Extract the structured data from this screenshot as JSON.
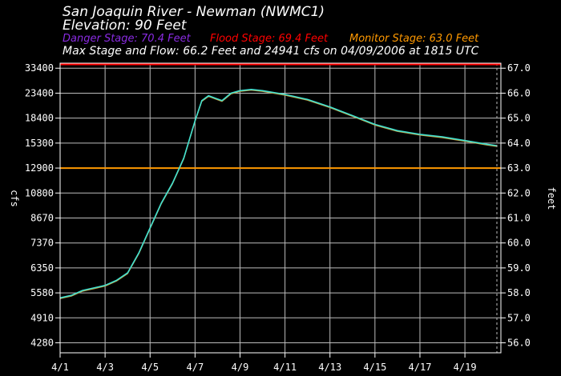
{
  "chart_data": {
    "type": "line",
    "title": "San Joaquin River - Newman (NWMC1)",
    "subtitle": "Elevation: 90 Feet",
    "stages": [
      {
        "label": "Danger Stage: 70.4 Feet",
        "value": 70.4,
        "color": "#8a2be2"
      },
      {
        "label": "Flood Stage: 69.4 Feet",
        "value": 69.4,
        "color": "#ff0000"
      },
      {
        "label": "Monitor Stage: 63.0 Feet",
        "value": 63.0,
        "color": "#ff9900"
      }
    ],
    "summary": "Max Stage and Flow: 66.2 Feet and 24941 cfs on 04/09/2006 at 1815 UTC",
    "ylabel_left": "cfs",
    "ylabel_right": "feet",
    "y_right_range": [
      55.6,
      67.2
    ],
    "x_range": [
      0,
      19.6
    ],
    "x_ticks": [
      "4/1",
      "4/3",
      "4/5",
      "4/7",
      "4/9",
      "4/11",
      "4/13",
      "4/15",
      "4/17",
      "4/19"
    ],
    "x_tick_positions": [
      0,
      2,
      4,
      6,
      8,
      10,
      12,
      14,
      16,
      18
    ],
    "right_ticks": [
      56.0,
      57.0,
      58.0,
      59.0,
      60.0,
      61.0,
      62.0,
      63.0,
      64.0,
      65.0,
      66.0,
      67.0
    ],
    "right_tick_labels": [
      "56.0",
      "57.0",
      "58.0",
      "59.0",
      "60.0",
      "61.0",
      "62.0",
      "63.0",
      "64.0",
      "65.0",
      "66.0",
      "67.0"
    ],
    "left_ticks": [
      {
        "label": "4280",
        "stage": 56.0
      },
      {
        "label": "4910",
        "stage": 57.0
      },
      {
        "label": "5580",
        "stage": 58.0
      },
      {
        "label": "6350",
        "stage": 59.0
      },
      {
        "label": "7370",
        "stage": 60.0
      },
      {
        "label": "8670",
        "stage": 61.0
      },
      {
        "label": "10800",
        "stage": 62.0
      },
      {
        "label": "12900",
        "stage": 63.0
      },
      {
        "label": "15300",
        "stage": 64.0
      },
      {
        "label": "18400",
        "stage": 65.0
      },
      {
        "label": "23400",
        "stage": 66.0
      },
      {
        "label": "33400",
        "stage": 67.0
      }
    ],
    "series": [
      {
        "color": "#40e0d0",
        "x": [
          0,
          0.5,
          1,
          1.5,
          2,
          2.5,
          3,
          3.5,
          4,
          4.5,
          5,
          5.5,
          6,
          6.3,
          6.6,
          6.9,
          7.2,
          7.6,
          8,
          8.5,
          9,
          10,
          11,
          12,
          13,
          14,
          15,
          16,
          17,
          18,
          19,
          19.4
        ],
        "y": [
          57.8,
          57.9,
          58.1,
          58.2,
          58.3,
          58.5,
          58.8,
          59.6,
          60.6,
          61.6,
          62.4,
          63.4,
          64.9,
          65.7,
          65.9,
          65.8,
          65.7,
          66.0,
          66.1,
          66.15,
          66.1,
          65.95,
          65.75,
          65.45,
          65.1,
          64.75,
          64.5,
          64.35,
          64.25,
          64.1,
          63.95,
          63.9
        ]
      }
    ]
  }
}
